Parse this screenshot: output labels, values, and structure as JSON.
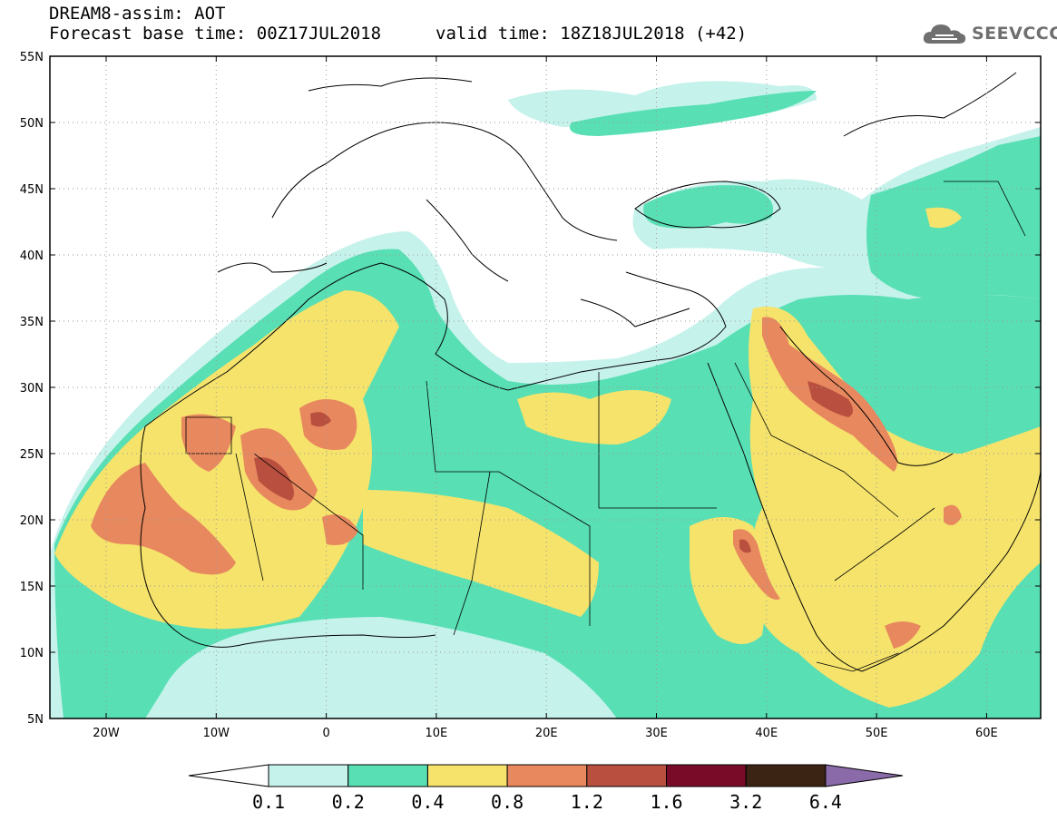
{
  "header": {
    "line1": "DREAM8-assim: AOT",
    "line2": "Forecast base time: 00Z17JUL2018",
    "line3": "valid time: 18Z18JUL2018 (+42)"
  },
  "logo": {
    "text": "SEEVCCC",
    "icon": "cloud-icon"
  },
  "axes": {
    "lat_labels": [
      "55N",
      "50N",
      "45N",
      "40N",
      "35N",
      "30N",
      "25N",
      "20N",
      "15N",
      "10N",
      "5N"
    ],
    "lon_labels": [
      "20W",
      "10W",
      "0",
      "10E",
      "20E",
      "30E",
      "40E",
      "50E",
      "60E"
    ]
  },
  "legend": {
    "labels": [
      "0.1",
      "0.2",
      "0.4",
      "0.8",
      "1.2",
      "1.6",
      "3.2",
      "6.4"
    ],
    "colors": [
      "#c6f2ec",
      "#58dfb4",
      "#f5e36c",
      "#e8885e",
      "#b9503f",
      "#7a0b28",
      "#3c2414",
      "#8a6aa8"
    ]
  }
}
